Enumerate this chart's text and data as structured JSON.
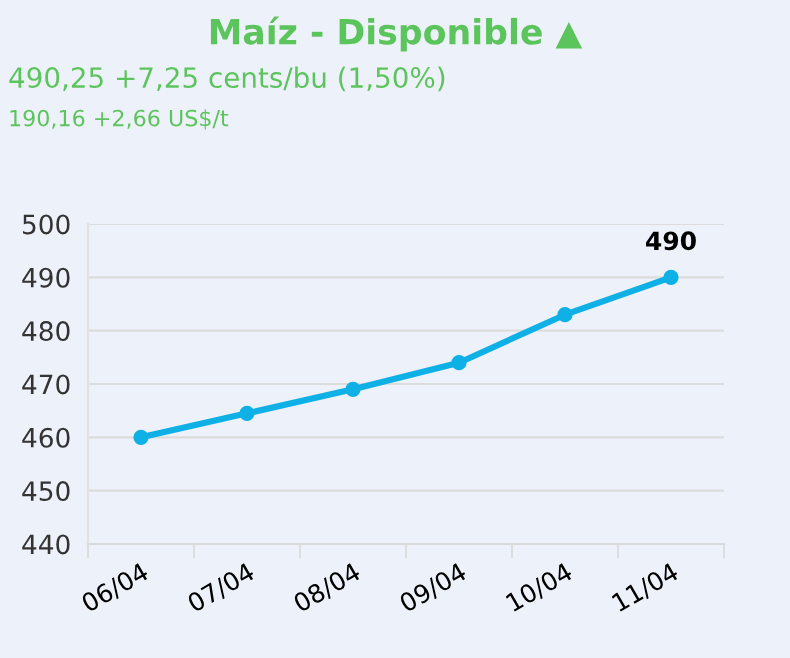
{
  "chart_data": {
    "type": "line",
    "title": "Maíz - Disponible ▲",
    "subtitle": "490,25 +7,25 cents/bu (1,50%)",
    "annotations": [
      "190,16 +2,66 US$/t",
      {
        "text": "490",
        "x": "11/04",
        "y": 490
      }
    ],
    "categories": [
      "06/04",
      "07/04",
      "08/04",
      "09/04",
      "10/04",
      "11/04"
    ],
    "series": [
      {
        "color": "#0fb0e6",
        "values": [
          460,
          464.5,
          469,
          474,
          483,
          490
        ]
      }
    ],
    "ylim": [
      440,
      500
    ],
    "yticks": [
      440,
      450,
      460,
      470,
      480,
      490,
      500
    ],
    "grid": "y",
    "marker": "circle",
    "line_style": "solid",
    "legend": false
  }
}
